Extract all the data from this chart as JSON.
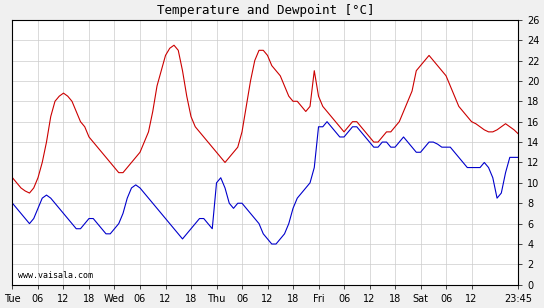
{
  "title": "Temperature and Dewpoint [°C]",
  "ylabel_right": "[°C]",
  "watermark": "www.vaisala.com",
  "ylim": [
    0,
    26
  ],
  "yticks": [
    0,
    2,
    4,
    6,
    8,
    10,
    12,
    14,
    16,
    18,
    20,
    22,
    24,
    26
  ],
  "bg_color": "#f0f0f0",
  "plot_bg_color": "#ffffff",
  "temp_color": "#cc0000",
  "dewp_color": "#0000cc",
  "grid_color": "#cccccc",
  "line_width": 0.8,
  "xtick_labels": [
    "Tue",
    "06",
    "12",
    "18",
    "Wed",
    "06",
    "12",
    "18",
    "Thu",
    "06",
    "12",
    "18",
    "Fri",
    "06",
    "12",
    "18",
    "Sat",
    "06",
    "12",
    "23:45"
  ],
  "xtick_positions": [
    0,
    6,
    12,
    18,
    24,
    30,
    36,
    42,
    48,
    54,
    60,
    66,
    72,
    78,
    84,
    90,
    96,
    102,
    108,
    119
  ],
  "total_hours": 119,
  "temp_data": [
    [
      0,
      10.5
    ],
    [
      1,
      10.0
    ],
    [
      2,
      9.5
    ],
    [
      3,
      9.2
    ],
    [
      4,
      9.0
    ],
    [
      5,
      9.5
    ],
    [
      6,
      10.5
    ],
    [
      7,
      12.0
    ],
    [
      8,
      14.0
    ],
    [
      9,
      16.5
    ],
    [
      10,
      18.0
    ],
    [
      11,
      18.5
    ],
    [
      12,
      18.8
    ],
    [
      13,
      18.5
    ],
    [
      14,
      18.0
    ],
    [
      15,
      17.0
    ],
    [
      16,
      16.0
    ],
    [
      17,
      15.5
    ],
    [
      18,
      14.5
    ],
    [
      19,
      14.0
    ],
    [
      20,
      13.5
    ],
    [
      21,
      13.0
    ],
    [
      22,
      12.5
    ],
    [
      23,
      12.0
    ],
    [
      24,
      11.5
    ],
    [
      25,
      11.0
    ],
    [
      26,
      11.0
    ],
    [
      27,
      11.5
    ],
    [
      28,
      12.0
    ],
    [
      29,
      12.5
    ],
    [
      30,
      13.0
    ],
    [
      31,
      14.0
    ],
    [
      32,
      15.0
    ],
    [
      33,
      17.0
    ],
    [
      34,
      19.5
    ],
    [
      35,
      21.0
    ],
    [
      36,
      22.5
    ],
    [
      37,
      23.2
    ],
    [
      38,
      23.5
    ],
    [
      39,
      23.0
    ],
    [
      40,
      21.0
    ],
    [
      41,
      18.5
    ],
    [
      42,
      16.5
    ],
    [
      43,
      15.5
    ],
    [
      44,
      15.0
    ],
    [
      45,
      14.5
    ],
    [
      46,
      14.0
    ],
    [
      47,
      13.5
    ],
    [
      48,
      13.0
    ],
    [
      49,
      12.5
    ],
    [
      50,
      12.0
    ],
    [
      51,
      12.5
    ],
    [
      52,
      13.0
    ],
    [
      53,
      13.5
    ],
    [
      54,
      15.0
    ],
    [
      55,
      17.5
    ],
    [
      56,
      20.0
    ],
    [
      57,
      22.0
    ],
    [
      58,
      23.0
    ],
    [
      59,
      23.0
    ],
    [
      60,
      22.5
    ],
    [
      61,
      21.5
    ],
    [
      62,
      21.0
    ],
    [
      63,
      20.5
    ],
    [
      64,
      19.5
    ],
    [
      65,
      18.5
    ],
    [
      66,
      18.0
    ],
    [
      67,
      18.0
    ],
    [
      68,
      17.5
    ],
    [
      69,
      17.0
    ],
    [
      70,
      17.5
    ],
    [
      71,
      21.0
    ],
    [
      72,
      18.5
    ],
    [
      73,
      17.5
    ],
    [
      74,
      17.0
    ],
    [
      75,
      16.5
    ],
    [
      76,
      16.0
    ],
    [
      77,
      15.5
    ],
    [
      78,
      15.0
    ],
    [
      79,
      15.5
    ],
    [
      80,
      16.0
    ],
    [
      81,
      16.0
    ],
    [
      82,
      15.5
    ],
    [
      83,
      15.0
    ],
    [
      84,
      14.5
    ],
    [
      85,
      14.0
    ],
    [
      86,
      14.0
    ],
    [
      87,
      14.5
    ],
    [
      88,
      15.0
    ],
    [
      89,
      15.0
    ],
    [
      90,
      15.5
    ],
    [
      91,
      16.0
    ],
    [
      92,
      17.0
    ],
    [
      93,
      18.0
    ],
    [
      94,
      19.0
    ],
    [
      95,
      21.0
    ],
    [
      96,
      21.5
    ],
    [
      97,
      22.0
    ],
    [
      98,
      22.5
    ],
    [
      99,
      22.0
    ],
    [
      100,
      21.5
    ],
    [
      101,
      21.0
    ],
    [
      102,
      20.5
    ],
    [
      103,
      19.5
    ],
    [
      104,
      18.5
    ],
    [
      105,
      17.5
    ],
    [
      106,
      17.0
    ],
    [
      107,
      16.5
    ],
    [
      108,
      16.0
    ],
    [
      109,
      15.8
    ],
    [
      110,
      15.5
    ],
    [
      111,
      15.2
    ],
    [
      112,
      15.0
    ],
    [
      113,
      15.0
    ],
    [
      114,
      15.2
    ],
    [
      115,
      15.5
    ],
    [
      116,
      15.8
    ],
    [
      117,
      15.5
    ],
    [
      118,
      15.2
    ],
    [
      119,
      14.8
    ]
  ],
  "dewp_data": [
    [
      0,
      8.0
    ],
    [
      1,
      7.5
    ],
    [
      2,
      7.0
    ],
    [
      3,
      6.5
    ],
    [
      4,
      6.0
    ],
    [
      5,
      6.5
    ],
    [
      6,
      7.5
    ],
    [
      7,
      8.5
    ],
    [
      8,
      8.8
    ],
    [
      9,
      8.5
    ],
    [
      10,
      8.0
    ],
    [
      11,
      7.5
    ],
    [
      12,
      7.0
    ],
    [
      13,
      6.5
    ],
    [
      14,
      6.0
    ],
    [
      15,
      5.5
    ],
    [
      16,
      5.5
    ],
    [
      17,
      6.0
    ],
    [
      18,
      6.5
    ],
    [
      19,
      6.5
    ],
    [
      20,
      6.0
    ],
    [
      21,
      5.5
    ],
    [
      22,
      5.0
    ],
    [
      23,
      5.0
    ],
    [
      24,
      5.5
    ],
    [
      25,
      6.0
    ],
    [
      26,
      7.0
    ],
    [
      27,
      8.5
    ],
    [
      28,
      9.5
    ],
    [
      29,
      9.8
    ],
    [
      30,
      9.5
    ],
    [
      31,
      9.0
    ],
    [
      32,
      8.5
    ],
    [
      33,
      8.0
    ],
    [
      34,
      7.5
    ],
    [
      35,
      7.0
    ],
    [
      36,
      6.5
    ],
    [
      37,
      6.0
    ],
    [
      38,
      5.5
    ],
    [
      39,
      5.0
    ],
    [
      40,
      4.5
    ],
    [
      41,
      5.0
    ],
    [
      42,
      5.5
    ],
    [
      43,
      6.0
    ],
    [
      44,
      6.5
    ],
    [
      45,
      6.5
    ],
    [
      46,
      6.0
    ],
    [
      47,
      5.5
    ],
    [
      48,
      10.0
    ],
    [
      49,
      10.5
    ],
    [
      50,
      9.5
    ],
    [
      51,
      8.0
    ],
    [
      52,
      7.5
    ],
    [
      53,
      8.0
    ],
    [
      54,
      8.0
    ],
    [
      55,
      7.5
    ],
    [
      56,
      7.0
    ],
    [
      57,
      6.5
    ],
    [
      58,
      6.0
    ],
    [
      59,
      5.0
    ],
    [
      60,
      4.5
    ],
    [
      61,
      4.0
    ],
    [
      62,
      4.0
    ],
    [
      63,
      4.5
    ],
    [
      64,
      5.0
    ],
    [
      65,
      6.0
    ],
    [
      66,
      7.5
    ],
    [
      67,
      8.5
    ],
    [
      68,
      9.0
    ],
    [
      69,
      9.5
    ],
    [
      70,
      10.0
    ],
    [
      71,
      11.5
    ],
    [
      72,
      15.5
    ],
    [
      73,
      15.5
    ],
    [
      74,
      16.0
    ],
    [
      75,
      15.5
    ],
    [
      76,
      15.0
    ],
    [
      77,
      14.5
    ],
    [
      78,
      14.5
    ],
    [
      79,
      15.0
    ],
    [
      80,
      15.5
    ],
    [
      81,
      15.5
    ],
    [
      82,
      15.0
    ],
    [
      83,
      14.5
    ],
    [
      84,
      14.0
    ],
    [
      85,
      13.5
    ],
    [
      86,
      13.5
    ],
    [
      87,
      14.0
    ],
    [
      88,
      14.0
    ],
    [
      89,
      13.5
    ],
    [
      90,
      13.5
    ],
    [
      91,
      14.0
    ],
    [
      92,
      14.5
    ],
    [
      93,
      14.0
    ],
    [
      94,
      13.5
    ],
    [
      95,
      13.0
    ],
    [
      96,
      13.0
    ],
    [
      97,
      13.5
    ],
    [
      98,
      14.0
    ],
    [
      99,
      14.0
    ],
    [
      100,
      13.8
    ],
    [
      101,
      13.5
    ],
    [
      102,
      13.5
    ],
    [
      103,
      13.5
    ],
    [
      104,
      13.0
    ],
    [
      105,
      12.5
    ],
    [
      106,
      12.0
    ],
    [
      107,
      11.5
    ],
    [
      108,
      11.5
    ],
    [
      109,
      11.5
    ],
    [
      110,
      11.5
    ],
    [
      111,
      12.0
    ],
    [
      112,
      11.5
    ],
    [
      113,
      10.5
    ],
    [
      114,
      8.5
    ],
    [
      115,
      9.0
    ],
    [
      116,
      11.0
    ],
    [
      117,
      12.5
    ],
    [
      118,
      12.5
    ],
    [
      119,
      12.5
    ]
  ]
}
